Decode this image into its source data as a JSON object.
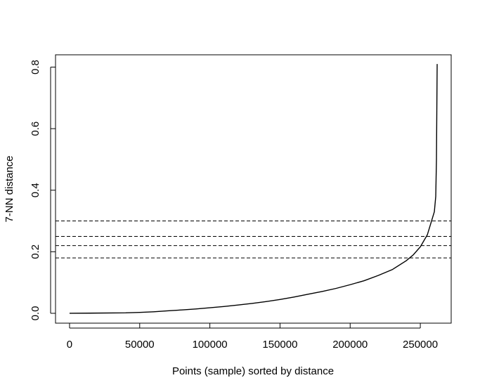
{
  "chart_data": {
    "type": "line",
    "title": "",
    "xlabel": "Points (sample) sorted by distance",
    "ylabel": "7-NN distance",
    "xlim": [
      -10000,
      272000
    ],
    "ylim": [
      -0.032,
      0.84
    ],
    "x_ticks": [
      0,
      50000,
      100000,
      150000,
      200000,
      250000
    ],
    "x_tick_labels": [
      "0",
      "50000",
      "100000",
      "150000",
      "200000",
      "250000"
    ],
    "y_ticks": [
      0.0,
      0.2,
      0.4,
      0.6,
      0.8
    ],
    "y_tick_labels": [
      "0.0",
      "0.2",
      "0.4",
      "0.6",
      "0.8"
    ],
    "grid": false,
    "series": [
      {
        "x": [
          0,
          40000,
          50000,
          60000,
          70000,
          80000,
          90000,
          100000,
          110000,
          120000,
          130000,
          140000,
          150000,
          160000,
          170000,
          180000,
          190000,
          200000,
          210000,
          220000,
          230000,
          240000,
          245000,
          250000,
          255000,
          258000,
          260000,
          261000,
          261500,
          262000
        ],
        "y": [
          0.0,
          0.0015,
          0.003,
          0.005,
          0.008,
          0.011,
          0.014,
          0.018,
          0.022,
          0.027,
          0.032,
          0.038,
          0.045,
          0.053,
          0.062,
          0.071,
          0.081,
          0.093,
          0.106,
          0.123,
          0.142,
          0.171,
          0.19,
          0.216,
          0.255,
          0.3,
          0.33,
          0.38,
          0.5,
          0.81
        ],
        "color": "#000000"
      }
    ],
    "hlines": [
      {
        "y": 0.3,
        "style": "dashed"
      },
      {
        "y": 0.25,
        "style": "dashed"
      },
      {
        "y": 0.22,
        "style": "dashed"
      },
      {
        "y": 0.18,
        "style": "dashed"
      }
    ]
  }
}
